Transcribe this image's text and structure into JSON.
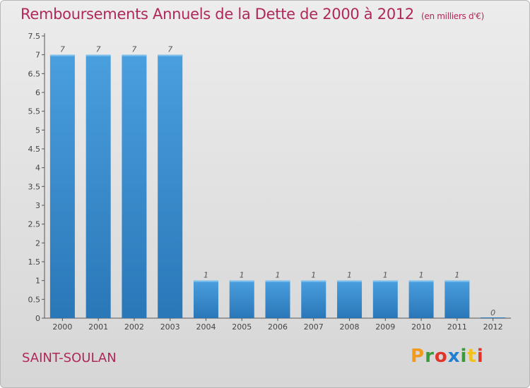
{
  "title": "Remboursements Annuels de la Dette de 2000 à 2012",
  "subtitle": "(en milliers d'€)",
  "commune": "SAINT-SOULAN",
  "brand": "Proxiti",
  "colors": {
    "bar": "#4a9fde",
    "bar_dark": "#2a77b8",
    "title": "#b0285a"
  },
  "chart_data": {
    "type": "bar",
    "title": "Remboursements Annuels de la Dette de 2000 à 2012",
    "xlabel": "",
    "ylabel": "",
    "ylim": [
      0,
      7.5
    ],
    "yticks": [
      "0",
      "0.5",
      "1",
      "1.5",
      "2",
      "2.5",
      "3",
      "3.5",
      "4",
      "4.5",
      "5",
      "5.5",
      "6",
      "6.5",
      "7",
      "7.5"
    ],
    "categories": [
      "2000",
      "2001",
      "2002",
      "2003",
      "2004",
      "2005",
      "2006",
      "2007",
      "2008",
      "2009",
      "2010",
      "2011",
      "2012"
    ],
    "values": [
      7,
      7,
      7,
      7,
      1,
      1,
      1,
      1,
      1,
      1,
      1,
      1,
      0
    ],
    "value_labels": [
      "7",
      "7",
      "7",
      "7",
      "1",
      "1",
      "1",
      "1",
      "1",
      "1",
      "1",
      "1",
      "0"
    ],
    "grid": false
  }
}
